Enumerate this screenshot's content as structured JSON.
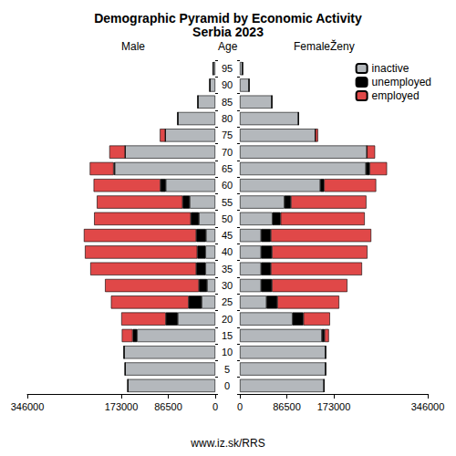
{
  "chart_data": {
    "type": "bar",
    "title": "Demographic Pyramid by Economic Activity",
    "subtitle": "Serbia 2023",
    "y_label": "Age",
    "source": "www.iz.sk/RRS",
    "orientation": "horizontal",
    "stacked": true,
    "grid": false,
    "legend": "top right",
    "categories": [
      "0",
      "5",
      "10",
      "15",
      "20",
      "25",
      "30",
      "35",
      "40",
      "45",
      "50",
      "55",
      "60",
      "65",
      "70",
      "75",
      "80",
      "85",
      "90",
      "95"
    ],
    "panels": [
      {
        "label": "Male",
        "xlim": [
          0,
          346000
        ],
        "xticks": [
          0,
          86500,
          173000,
          346000
        ],
        "series": [
          {
            "name": "inactive",
            "color": "#b4b8bc",
            "values": [
              161000,
              166000,
              168000,
              144000,
              69000,
              25000,
              15000,
              18000,
              18000,
              17000,
              30000,
              47000,
              91000,
              185000,
              166000,
              92000,
              69000,
              32000,
              10000,
              4000
            ]
          },
          {
            "name": "unemployed",
            "color": "#000000",
            "values": [
              0,
              0,
              0,
              8000,
              22000,
              24000,
              15000,
              17000,
              15000,
              18000,
              15000,
              13000,
              10000,
              2000,
              0,
              0,
              0,
              0,
              0,
              0
            ]
          },
          {
            "name": "employed",
            "color": "#e04848",
            "values": [
              0,
              0,
              0,
              20000,
              82000,
              143000,
              173000,
              195000,
              207000,
              207000,
              178000,
              158000,
              123000,
              44000,
              29000,
              10000,
              0,
              0,
              0,
              0
            ]
          }
        ]
      },
      {
        "label": "FemaleŽeny",
        "xlim": [
          0,
          346000
        ],
        "xticks": [
          0,
          86500,
          173000,
          346000
        ],
        "series": [
          {
            "name": "inactive",
            "color": "#b4b8bc",
            "values": [
              155000,
              158000,
              158000,
              151000,
              97000,
              49000,
              39000,
              39000,
              39000,
              39000,
              60000,
              82000,
              148000,
              232000,
              234000,
              139000,
              108000,
              59000,
              17000,
              5000
            ]
          },
          {
            "name": "unemployed",
            "color": "#000000",
            "values": [
              0,
              0,
              0,
              5000,
              20000,
              20000,
              20000,
              18000,
              20000,
              18000,
              15000,
              12000,
              7000,
              7000,
              0,
              0,
              0,
              0,
              0,
              0
            ]
          },
          {
            "name": "employed",
            "color": "#e04848",
            "values": [
              0,
              0,
              0,
              8000,
              49000,
              114000,
              139000,
              168000,
              176000,
              185000,
              155000,
              139000,
              96000,
              32000,
              15000,
              5000,
              0,
              0,
              0,
              0
            ]
          }
        ]
      }
    ]
  }
}
